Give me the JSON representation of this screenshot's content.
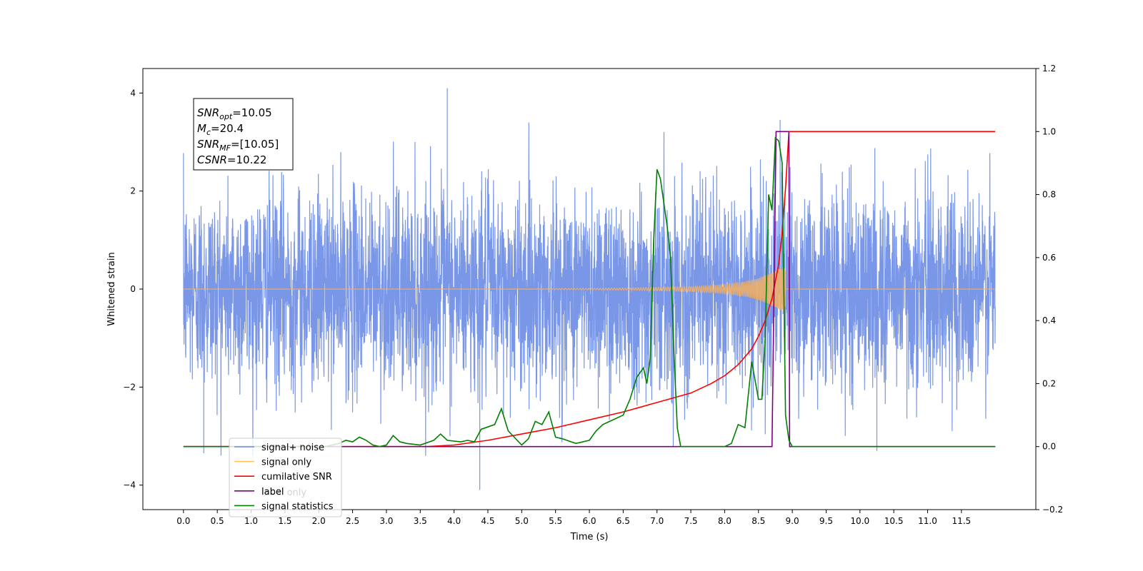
{
  "chart_data": {
    "type": "line",
    "xlabel": "Time (s)",
    "ylabel": "Whitened strain",
    "xlim": [
      -0.6,
      12.6
    ],
    "ylim": [
      -4.5,
      4.5
    ],
    "y2lim": [
      -0.2,
      1.2
    ],
    "x_ticks": [
      0.0,
      0.5,
      1.0,
      1.5,
      2.0,
      2.5,
      3.0,
      3.5,
      4.0,
      4.5,
      5.0,
      5.5,
      6.0,
      6.5,
      7.0,
      7.5,
      8.0,
      8.5,
      9.0,
      9.5,
      10.0,
      10.5,
      11.0,
      11.5
    ],
    "x_tick_labels": [
      "0.0",
      "0.5",
      "1.0",
      "1.5",
      "2.0",
      "2.5",
      "3.0",
      "3.5",
      "4.0",
      "4.5",
      "5.0",
      "5.5",
      "6.0",
      "6.5",
      "7.0",
      "7.5",
      "8.0",
      "8.5",
      "9.0",
      "9.5",
      "10.0",
      "10.5",
      "11.0",
      "11.5"
    ],
    "y_ticks": [
      -4,
      -2,
      0,
      2,
      4
    ],
    "y_tick_labels": [
      "−4",
      "−2",
      "0",
      "2",
      "4"
    ],
    "y2_ticks": [
      -0.2,
      0.0,
      0.2,
      0.4,
      0.6,
      0.8,
      1.0,
      1.2
    ],
    "y2_tick_labels": [
      "−0.2",
      "0.0",
      "0.2",
      "0.4",
      "0.6",
      "0.8",
      "1.0",
      "1.2"
    ],
    "info_box": {
      "lines": [
        {
          "sym": "SNR",
          "sub": "opt",
          "value": "=10.05"
        },
        {
          "sym": "M",
          "sub": "c",
          "value": "=20.4"
        },
        {
          "sym": "SNR",
          "sub": "MF",
          "value": "=[10.05]"
        },
        {
          "sym": "CSNR",
          "sub": "",
          "value": "=10.22"
        }
      ]
    },
    "legend": {
      "placement": "lower-left",
      "entries": [
        {
          "label": "signal+ noise",
          "color": "#6a8be4"
        },
        {
          "label": "signal only",
          "color": "#ffc45a"
        },
        {
          "label": "cumilative SNR",
          "color": "#ff0000"
        },
        {
          "label": "label",
          "color": "#800080"
        },
        {
          "label": "signal statistics",
          "color": "#008000"
        }
      ],
      "hidden_label": "label only"
    },
    "series": [
      {
        "name": "signal+ noise",
        "axis": "left",
        "color": "#6a8be4",
        "x_range": [
          0.0,
          12.0
        ],
        "envelope_sigma": 1.0,
        "notable_peaks": [
          {
            "x": 3.9,
            "y": 4.1
          },
          {
            "x": 4.38,
            "y": -4.1
          },
          {
            "x": 0.3,
            "y": -3.35
          },
          {
            "x": 8.82,
            "y": 3.45
          },
          {
            "x": 10.25,
            "y": -3.3
          }
        ]
      },
      {
        "name": "signal only",
        "axis": "left",
        "color": "#f5b060",
        "x_range": [
          0.0,
          12.0
        ],
        "chirp_start": 4.6,
        "merger": 8.9,
        "amplitude_points": [
          [
            4.6,
            0.0
          ],
          [
            6.5,
            0.02
          ],
          [
            7.5,
            0.05
          ],
          [
            8.0,
            0.09
          ],
          [
            8.3,
            0.15
          ],
          [
            8.5,
            0.22
          ],
          [
            8.7,
            0.34
          ],
          [
            8.8,
            0.42
          ],
          [
            8.9,
            0.48
          ]
        ]
      },
      {
        "name": "cumilative SNR",
        "axis": "right",
        "color": "#ff0000",
        "x": [
          0.0,
          3.6,
          4.0,
          4.5,
          5.0,
          5.5,
          6.0,
          6.5,
          7.0,
          7.5,
          7.8,
          8.0,
          8.2,
          8.4,
          8.5,
          8.6,
          8.7,
          8.8,
          8.85,
          8.9,
          8.95,
          12.0
        ],
        "values": [
          0.0,
          0.0,
          0.005,
          0.02,
          0.04,
          0.06,
          0.085,
          0.11,
          0.14,
          0.17,
          0.2,
          0.225,
          0.26,
          0.31,
          0.35,
          0.4,
          0.47,
          0.58,
          0.68,
          0.82,
          1.0,
          1.0
        ]
      },
      {
        "name": "label",
        "axis": "right",
        "color": "#800080",
        "x": [
          0.0,
          8.7,
          8.76,
          8.95,
          8.96,
          12.0
        ],
        "values": [
          0.0,
          0.0,
          1.0,
          1.0,
          0.0,
          0.0
        ]
      },
      {
        "name": "signal statistics",
        "axis": "right",
        "color": "#008000",
        "x": [
          0.0,
          2.1,
          2.3,
          2.4,
          2.5,
          2.6,
          2.7,
          2.8,
          2.9,
          3.0,
          3.1,
          3.2,
          3.3,
          3.5,
          3.7,
          3.8,
          3.9,
          4.1,
          4.2,
          4.3,
          4.4,
          4.6,
          4.7,
          4.8,
          5.0,
          5.1,
          5.2,
          5.3,
          5.4,
          5.5,
          5.6,
          5.8,
          6.0,
          6.1,
          6.2,
          6.3,
          6.5,
          6.6,
          6.7,
          6.8,
          6.85,
          6.9,
          6.95,
          7.0,
          7.05,
          7.15,
          7.2,
          7.25,
          7.3,
          7.35,
          7.4,
          7.5,
          8.0,
          8.1,
          8.2,
          8.3,
          8.4,
          8.5,
          8.55,
          8.6,
          8.65,
          8.7,
          8.75,
          8.8,
          8.85,
          8.9,
          8.95,
          9.0,
          12.0
        ],
        "values": [
          0.0,
          0.0,
          0.01,
          0.02,
          0.015,
          0.03,
          0.02,
          0.005,
          0.0,
          0.005,
          0.035,
          0.015,
          0.01,
          0.005,
          0.02,
          0.04,
          0.02,
          0.015,
          0.02,
          0.015,
          0.055,
          0.07,
          0.12,
          0.05,
          0.005,
          0.025,
          0.08,
          0.07,
          0.11,
          0.03,
          0.025,
          0.01,
          0.02,
          0.05,
          0.07,
          0.08,
          0.1,
          0.15,
          0.22,
          0.25,
          0.2,
          0.28,
          0.65,
          0.88,
          0.85,
          0.7,
          0.6,
          0.3,
          0.06,
          0.0,
          0.0,
          0.0,
          0.0,
          0.01,
          0.07,
          0.06,
          0.27,
          0.15,
          0.15,
          0.35,
          0.8,
          0.75,
          0.98,
          0.97,
          0.9,
          0.1,
          0.02,
          0.0,
          0.0
        ]
      }
    ]
  }
}
